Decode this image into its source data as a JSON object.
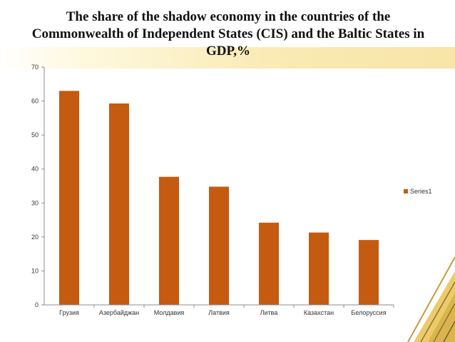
{
  "slide": {
    "title": "The share of the shadow economy in the countries of the Commonwealth of Independent States (CIS) and the Baltic States in GDP,%"
  },
  "colors": {
    "bar": "#c55a11",
    "gold": "#f2cf5f",
    "axis": "#8c8c8c",
    "text": "#333333"
  },
  "chart_data": {
    "type": "bar",
    "title": "The share of the shadow economy in the countries of the Commonwealth of Independent States (CIS) and the Baltic States in GDP,%",
    "categories": [
      "Грузия",
      "Азербайджан",
      "Молдавия",
      "Латвия",
      "Литва",
      "Казахстан",
      "Белоруссия"
    ],
    "series": [
      {
        "name": "Series1",
        "values": [
          63,
          59.3,
          37.7,
          34.8,
          24.2,
          21.3,
          19.1
        ]
      }
    ],
    "ylim": [
      0,
      70
    ],
    "yticks": [
      0,
      10,
      20,
      30,
      40,
      50,
      60,
      70
    ],
    "xlabel": "",
    "ylabel": "",
    "grid": false,
    "legend_position": "right"
  }
}
